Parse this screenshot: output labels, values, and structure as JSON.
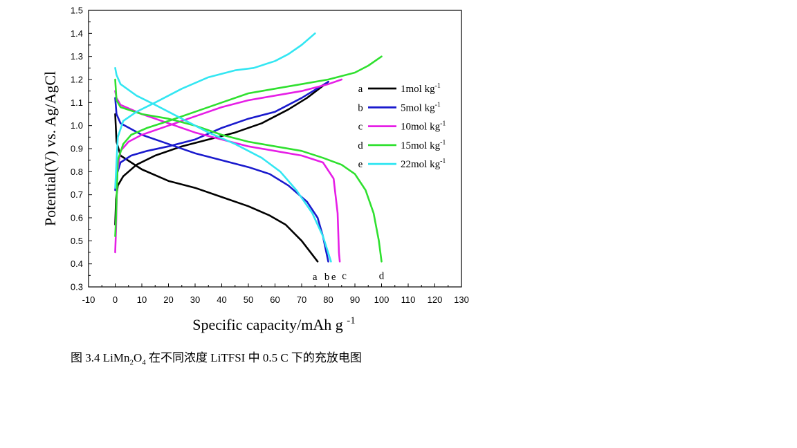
{
  "chart_data": {
    "type": "line",
    "xlabel": "Specific capacity/mAh g",
    "xlabel_sup": "-1",
    "ylabel": "Potential(V) vs. Ag/AgCl",
    "xlim": [
      -10,
      130
    ],
    "ylim": [
      0.3,
      1.5
    ],
    "xticks": [
      -10,
      0,
      10,
      20,
      30,
      40,
      50,
      60,
      70,
      80,
      90,
      100,
      110,
      120,
      130
    ],
    "yticks": [
      0.3,
      0.4,
      0.5,
      0.6,
      0.7,
      0.8,
      0.9,
      1.0,
      1.1,
      1.2,
      1.3,
      1.4,
      1.5
    ],
    "legend_position": "right",
    "series": [
      {
        "letter": "a",
        "name": "1mol kg",
        "unit_sup": "-1",
        "color": "#000000",
        "charge": [
          [
            0,
            0.57
          ],
          [
            0.3,
            0.68
          ],
          [
            1,
            0.74
          ],
          [
            3,
            0.78
          ],
          [
            8,
            0.83
          ],
          [
            15,
            0.87
          ],
          [
            25,
            0.91
          ],
          [
            35,
            0.94
          ],
          [
            45,
            0.97
          ],
          [
            55,
            1.01
          ],
          [
            65,
            1.07
          ],
          [
            72,
            1.12
          ],
          [
            80,
            1.19
          ]
        ],
        "discharge": [
          [
            0,
            1.05
          ],
          [
            0.5,
            0.93
          ],
          [
            2,
            0.87
          ],
          [
            10,
            0.81
          ],
          [
            20,
            0.76
          ],
          [
            30,
            0.73
          ],
          [
            40,
            0.69
          ],
          [
            50,
            0.65
          ],
          [
            58,
            0.61
          ],
          [
            64,
            0.57
          ],
          [
            70,
            0.5
          ],
          [
            74,
            0.44
          ],
          [
            76,
            0.41
          ]
        ]
      },
      {
        "letter": "b",
        "name": "5mol kg",
        "unit_sup": "-1",
        "color": "#1a1acd",
        "charge": [
          [
            0,
            0.72
          ],
          [
            0.4,
            0.78
          ],
          [
            2,
            0.84
          ],
          [
            6,
            0.87
          ],
          [
            12,
            0.89
          ],
          [
            20,
            0.91
          ],
          [
            30,
            0.94
          ],
          [
            40,
            0.99
          ],
          [
            50,
            1.03
          ],
          [
            60,
            1.06
          ],
          [
            70,
            1.12
          ],
          [
            80,
            1.19
          ]
        ],
        "discharge": [
          [
            0,
            1.12
          ],
          [
            0.5,
            1.05
          ],
          [
            2,
            1.01
          ],
          [
            10,
            0.96
          ],
          [
            20,
            0.92
          ],
          [
            30,
            0.88
          ],
          [
            40,
            0.85
          ],
          [
            50,
            0.82
          ],
          [
            58,
            0.79
          ],
          [
            65,
            0.74
          ],
          [
            72,
            0.67
          ],
          [
            76,
            0.6
          ],
          [
            78,
            0.52
          ],
          [
            80,
            0.41
          ]
        ]
      },
      {
        "letter": "c",
        "name": "10mol kg",
        "unit_sup": "-1",
        "color": "#e61ee6",
        "charge": [
          [
            0,
            0.45
          ],
          [
            0.3,
            0.55
          ],
          [
            0.8,
            0.8
          ],
          [
            2,
            0.89
          ],
          [
            5,
            0.93
          ],
          [
            10,
            0.96
          ],
          [
            20,
            1.0
          ],
          [
            30,
            1.04
          ],
          [
            40,
            1.08
          ],
          [
            50,
            1.11
          ],
          [
            60,
            1.13
          ],
          [
            70,
            1.15
          ],
          [
            80,
            1.18
          ],
          [
            85,
            1.2
          ]
        ],
        "discharge": [
          [
            0,
            1.15
          ],
          [
            0.5,
            1.12
          ],
          [
            2,
            1.09
          ],
          [
            10,
            1.05
          ],
          [
            20,
            1.01
          ],
          [
            30,
            0.97
          ],
          [
            40,
            0.94
          ],
          [
            50,
            0.91
          ],
          [
            60,
            0.89
          ],
          [
            70,
            0.87
          ],
          [
            78,
            0.84
          ],
          [
            82,
            0.77
          ],
          [
            83.5,
            0.62
          ],
          [
            84,
            0.45
          ],
          [
            84.3,
            0.41
          ]
        ]
      },
      {
        "letter": "d",
        "name": "15mol kg",
        "unit_sup": "-1",
        "color": "#2fe02f",
        "charge": [
          [
            0,
            0.52
          ],
          [
            0.3,
            0.6
          ],
          [
            1,
            0.85
          ],
          [
            3,
            0.92
          ],
          [
            6,
            0.96
          ],
          [
            12,
            0.99
          ],
          [
            20,
            1.02
          ],
          [
            30,
            1.06
          ],
          [
            40,
            1.1
          ],
          [
            50,
            1.14
          ],
          [
            60,
            1.16
          ],
          [
            70,
            1.18
          ],
          [
            80,
            1.2
          ],
          [
            90,
            1.23
          ],
          [
            95,
            1.26
          ],
          [
            100,
            1.3
          ]
        ],
        "discharge": [
          [
            0,
            1.2
          ],
          [
            0.5,
            1.11
          ],
          [
            2,
            1.08
          ],
          [
            10,
            1.05
          ],
          [
            20,
            1.03
          ],
          [
            30,
            1.0
          ],
          [
            40,
            0.96
          ],
          [
            50,
            0.93
          ],
          [
            60,
            0.91
          ],
          [
            70,
            0.89
          ],
          [
            78,
            0.86
          ],
          [
            85,
            0.83
          ],
          [
            90,
            0.79
          ],
          [
            94,
            0.72
          ],
          [
            97,
            0.62
          ],
          [
            99,
            0.5
          ],
          [
            100,
            0.41
          ]
        ]
      },
      {
        "letter": "e",
        "name": "22mol kg",
        "unit_sup": "-1",
        "color": "#33e6f2",
        "charge": [
          [
            0,
            0.73
          ],
          [
            0.3,
            0.8
          ],
          [
            1,
            0.95
          ],
          [
            3,
            1.02
          ],
          [
            8,
            1.06
          ],
          [
            15,
            1.1
          ],
          [
            25,
            1.16
          ],
          [
            35,
            1.21
          ],
          [
            45,
            1.24
          ],
          [
            52,
            1.25
          ],
          [
            60,
            1.28
          ],
          [
            65,
            1.31
          ],
          [
            70,
            1.35
          ],
          [
            75,
            1.4
          ]
        ],
        "discharge": [
          [
            0,
            1.25
          ],
          [
            0.5,
            1.22
          ],
          [
            2,
            1.18
          ],
          [
            8,
            1.13
          ],
          [
            15,
            1.09
          ],
          [
            25,
            1.03
          ],
          [
            35,
            0.97
          ],
          [
            45,
            0.92
          ],
          [
            55,
            0.86
          ],
          [
            62,
            0.8
          ],
          [
            68,
            0.72
          ],
          [
            74,
            0.62
          ],
          [
            78,
            0.52
          ],
          [
            81,
            0.41
          ]
        ]
      }
    ],
    "end_labels": [
      {
        "text": "a",
        "x": 75,
        "y": 0.375
      },
      {
        "text": "b",
        "x": 79.5,
        "y": 0.375
      },
      {
        "text": "e",
        "x": 82,
        "y": 0.375
      },
      {
        "text": "c",
        "x": 86,
        "y": 0.38
      },
      {
        "text": "d",
        "x": 100,
        "y": 0.38
      }
    ]
  },
  "caption": {
    "prefix": "图 3.4 LiMn",
    "sub1": "2",
    "mid": "O",
    "sub2": "4",
    "suffix": " 在不同浓度 LiTFSI 中 0.5 C 下的充放电图"
  }
}
